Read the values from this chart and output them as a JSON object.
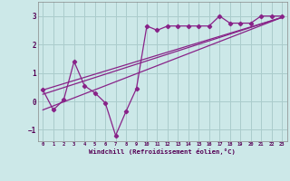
{
  "xlabel": "Windchill (Refroidissement éolien,°C)",
  "bg_color": "#cce8e8",
  "grid_color": "#aacccc",
  "line_color": "#882288",
  "xlim": [
    -0.5,
    23.5
  ],
  "ylim": [
    -1.4,
    3.5
  ],
  "xticks": [
    0,
    1,
    2,
    3,
    4,
    5,
    6,
    7,
    8,
    9,
    10,
    11,
    12,
    13,
    14,
    15,
    16,
    17,
    18,
    19,
    20,
    21,
    22,
    23
  ],
  "yticks": [
    -1,
    0,
    1,
    2,
    3
  ],
  "scatter_x": [
    0,
    1,
    2,
    3,
    4,
    5,
    6,
    7,
    8,
    9,
    10,
    11,
    12,
    13,
    14,
    15,
    16,
    17,
    18,
    19,
    20,
    21,
    22,
    23
  ],
  "scatter_y": [
    0.4,
    -0.3,
    0.05,
    1.4,
    0.55,
    0.3,
    -0.05,
    -1.2,
    -0.35,
    0.45,
    2.65,
    2.5,
    2.65,
    2.65,
    2.65,
    2.65,
    2.65,
    3.0,
    2.75,
    2.75,
    2.75,
    3.0,
    3.0,
    3.0
  ],
  "line1_x": [
    0,
    23
  ],
  "line1_y": [
    0.25,
    2.95
  ],
  "line2_x": [
    0,
    23
  ],
  "line2_y": [
    -0.3,
    2.95
  ],
  "line3_x": [
    0,
    23
  ],
  "line3_y": [
    0.4,
    2.95
  ]
}
